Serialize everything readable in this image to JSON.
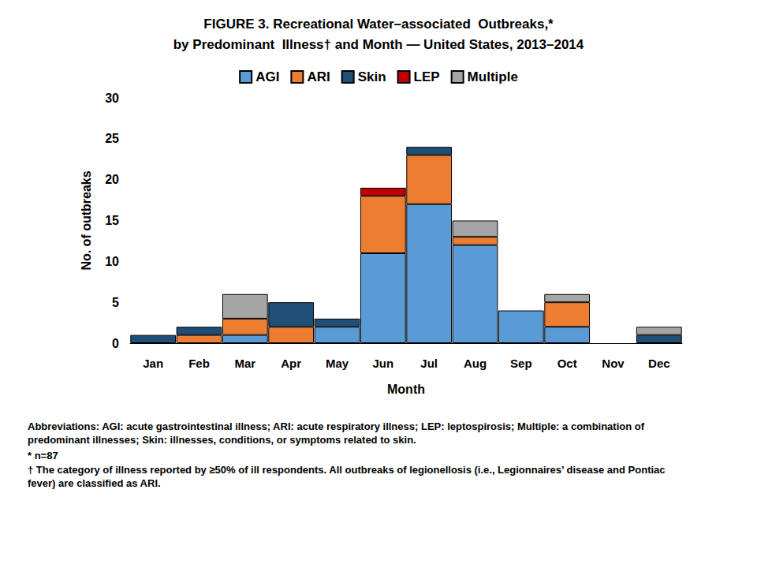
{
  "chart_data": {
    "type": "bar",
    "title": "FIGURE 3. Recreational Water–associated  Outbreaks,*",
    "subtitle": "by Predominant  Illness† and Month — United States, 2013–2014",
    "x_label": "Month",
    "y_label": "No. of outbreaks",
    "categories": [
      "Jan",
      "Feb",
      "Mar",
      "Apr",
      "May",
      "Jun",
      "Jul",
      "Aug",
      "Sep",
      "Oct",
      "Nov",
      "Dec"
    ],
    "series": [
      {
        "name": "AGI",
        "color": "#5b9bd5",
        "values": [
          0,
          0,
          1,
          0,
          2,
          11,
          17,
          12,
          4,
          2,
          0,
          0
        ]
      },
      {
        "name": "ARI",
        "color": "#ed7d31",
        "values": [
          0,
          1,
          2,
          2,
          0,
          7,
          6,
          1,
          0,
          3,
          0,
          0
        ]
      },
      {
        "name": "Skin",
        "color": "#1f4e79",
        "values": [
          1,
          1,
          0,
          3,
          1,
          0,
          1,
          0,
          0,
          0,
          0,
          1
        ]
      },
      {
        "name": "LEP",
        "color": "#c00000",
        "values": [
          0,
          0,
          0,
          0,
          0,
          1,
          0,
          0,
          0,
          0,
          0,
          0
        ]
      },
      {
        "name": "Multiple",
        "color": "#a5a5a5",
        "values": [
          0,
          0,
          3,
          0,
          0,
          0,
          0,
          2,
          0,
          1,
          0,
          1
        ]
      }
    ],
    "stacked": true,
    "legend": "top",
    "grid": false,
    "ylim": [
      0,
      30
    ],
    "yticks": [
      0,
      5,
      10,
      15,
      20,
      25,
      30
    ],
    "annotations": [
      "Abbreviations: AGI: acute gastrointestinal illness; ARI: acute respiratory illness; LEP: leptospirosis; Multiple: a combination of predominant illnesses; Skin: illnesses, conditions, or symptoms related to skin.",
      "* n=87",
      "† The category of illness reported by ≥50% of ill respondents. All outbreaks of legionellosis (i.e., Legionnaires’ disease and Pontiac fever) are classified as ARI."
    ]
  }
}
